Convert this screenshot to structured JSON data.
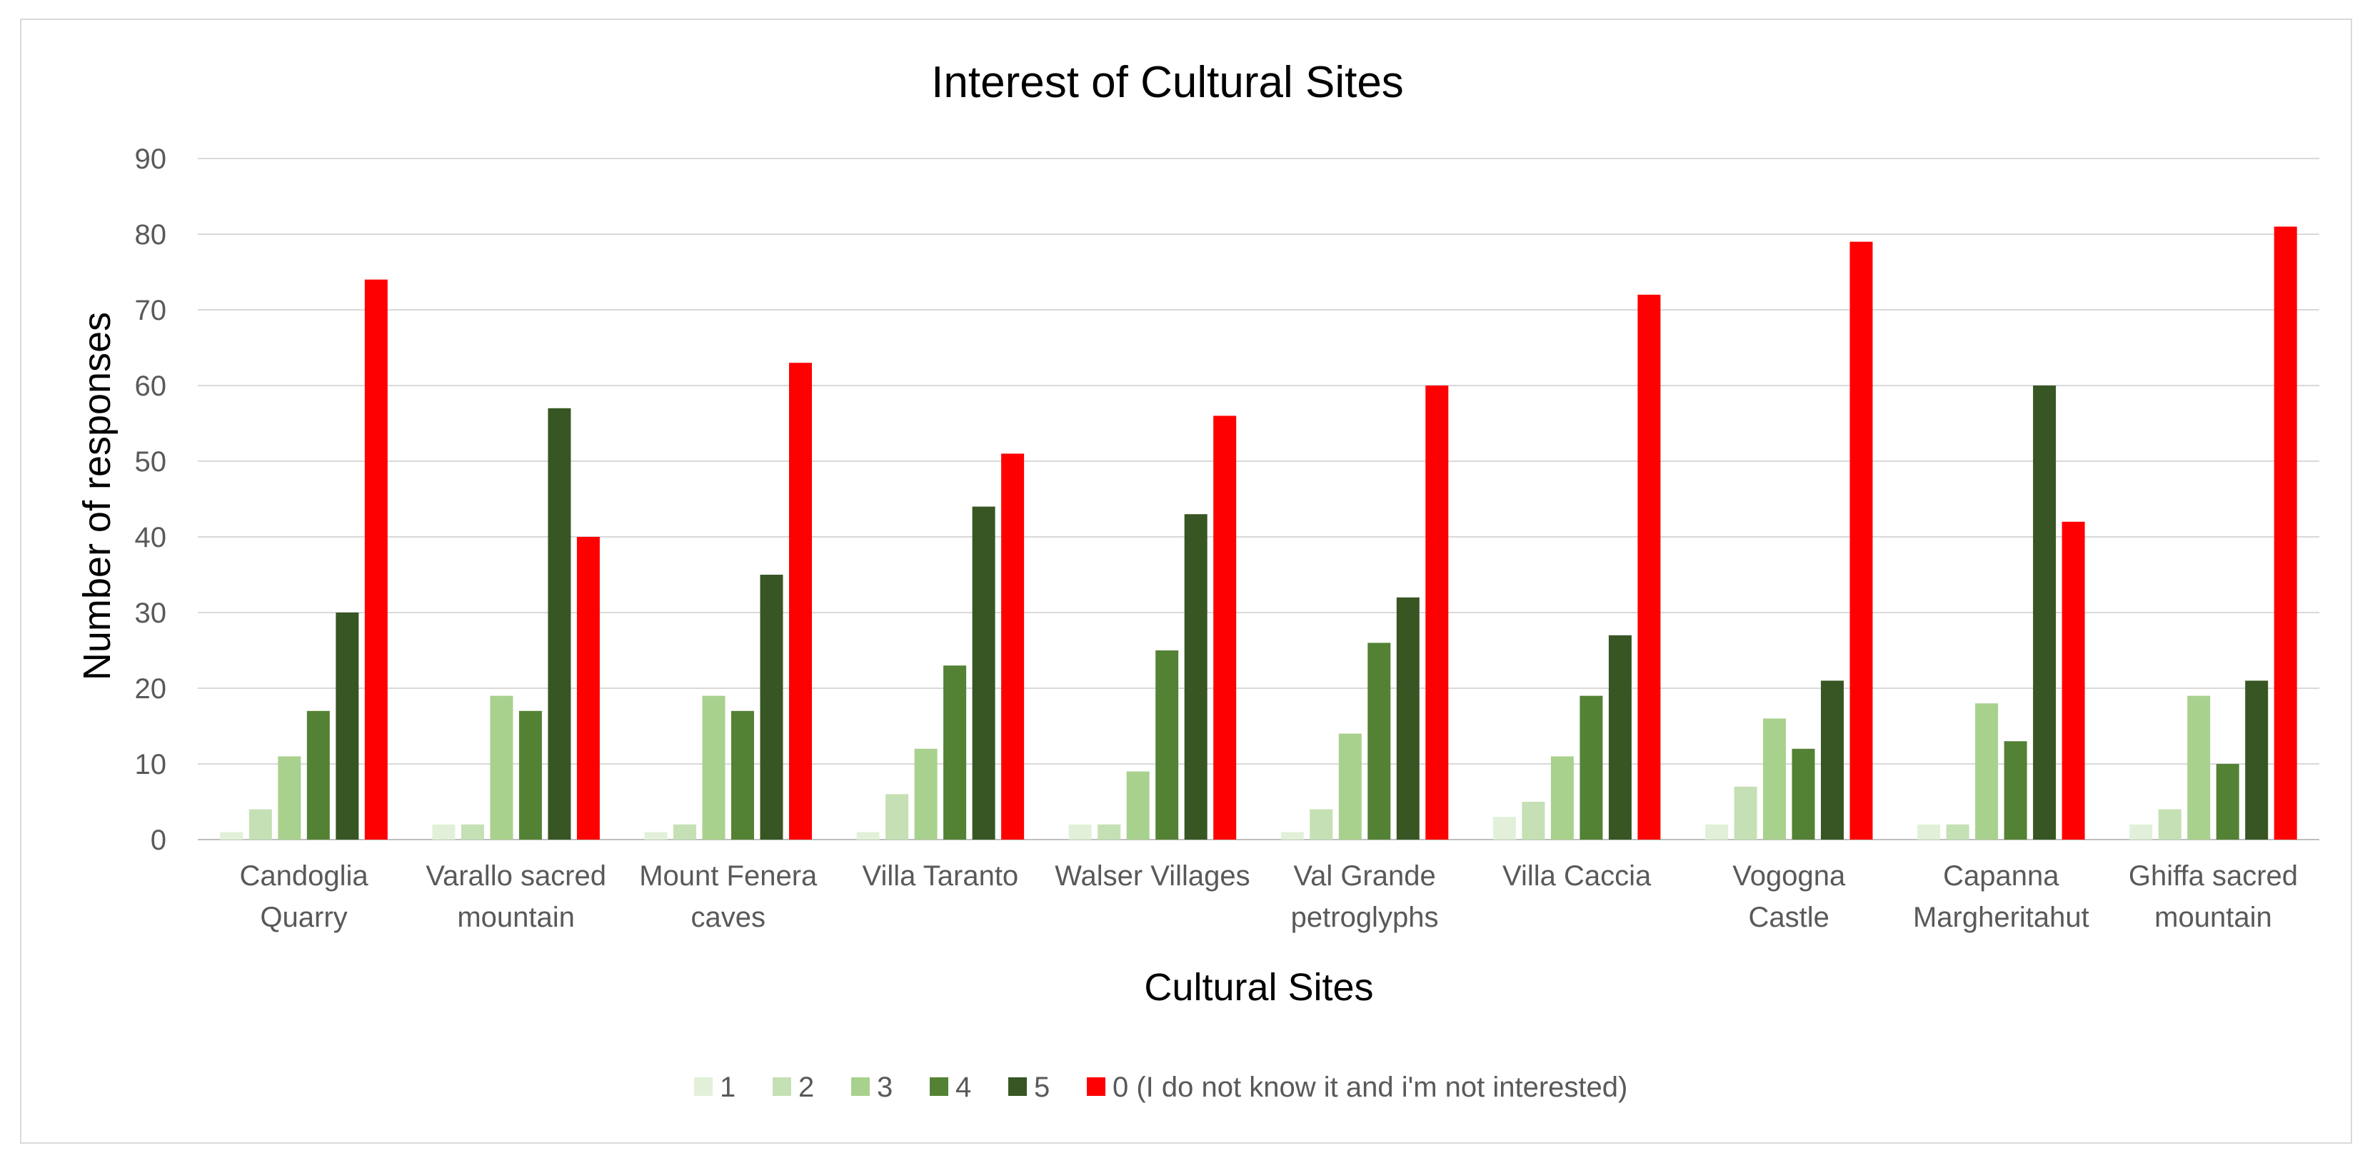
{
  "chart_data": {
    "type": "bar",
    "title": "Interest of Cultural Sites",
    "xlabel": "Cultural Sites",
    "ylabel": "Number of responses",
    "ylim": [
      0,
      90
    ],
    "yticks": [
      "0",
      "10",
      "20",
      "30",
      "40",
      "50",
      "60",
      "70",
      "80",
      "90"
    ],
    "grid": "horizontal",
    "legend_position": "bottom",
    "categories": [
      [
        "Candoglia",
        "Quarry"
      ],
      [
        "Varallo sacred",
        "mountain"
      ],
      [
        "Mount Fenera",
        "caves"
      ],
      [
        "Villa Taranto"
      ],
      [
        "Walser Villages"
      ],
      [
        "Val Grande",
        "petroglyphs"
      ],
      [
        "Villa Caccia"
      ],
      [
        "Vogogna",
        "Castle"
      ],
      [
        "Capanna",
        "Margheritahut"
      ],
      [
        "Ghiffa sacred",
        "mountain"
      ]
    ],
    "series": [
      {
        "name": "1",
        "color": "#e2f0d9",
        "values": [
          1,
          2,
          1,
          1,
          2,
          1,
          3,
          2,
          2,
          2
        ]
      },
      {
        "name": "2",
        "color": "#c5e0b4",
        "values": [
          4,
          2,
          2,
          6,
          2,
          4,
          5,
          7,
          2,
          4
        ]
      },
      {
        "name": "3",
        "color": "#a9d18e",
        "values": [
          11,
          19,
          19,
          12,
          9,
          14,
          11,
          16,
          18,
          19
        ]
      },
      {
        "name": "4",
        "color": "#548235",
        "values": [
          17,
          17,
          17,
          23,
          25,
          26,
          19,
          12,
          13,
          10
        ]
      },
      {
        "name": "5",
        "color": "#375623",
        "values": [
          30,
          57,
          35,
          44,
          43,
          32,
          27,
          21,
          60,
          21
        ]
      },
      {
        "name": "0 (I do not know it and i'm not interested)",
        "color": "#ff0000",
        "values": [
          74,
          40,
          63,
          51,
          56,
          60,
          72,
          79,
          42,
          81
        ]
      }
    ]
  }
}
